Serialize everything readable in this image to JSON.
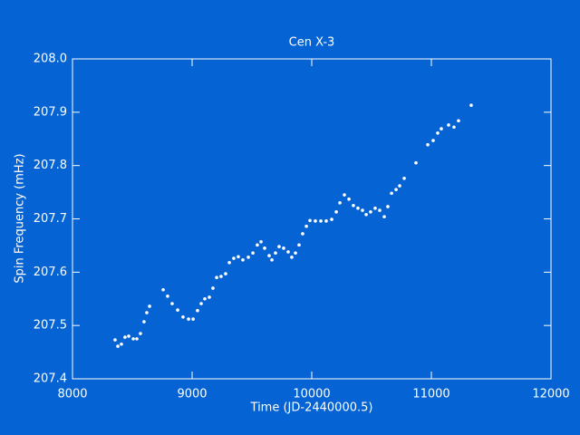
{
  "chart_data": {
    "type": "scatter",
    "title": "Cen X-3",
    "x_label": "Time (JD-2440000.5)",
    "y_label": "Spin Frequency (mHz)",
    "color": "#ffffff",
    "xlim": [
      8000,
      12000
    ],
    "xticks": [
      8000,
      9000,
      10000,
      11000,
      12000
    ],
    "ylim": [
      207.4,
      208.0
    ],
    "yticks": [
      207.4,
      207.5,
      207.6,
      207.7,
      207.8,
      207.9,
      {
        "value": 208.0,
        "label": "208.0"
      }
    ],
    "x": [
      8356,
      8379,
      8409,
      8439,
      8470,
      8508,
      8538,
      8568,
      8598,
      8621,
      8644,
      8758,
      8795,
      8833,
      8879,
      8924,
      8970,
      9008,
      9045,
      9076,
      9106,
      9144,
      9174,
      9205,
      9242,
      9280,
      9311,
      9348,
      9386,
      9424,
      9470,
      9508,
      9545,
      9576,
      9606,
      9644,
      9667,
      9697,
      9727,
      9765,
      9803,
      9833,
      9864,
      9894,
      9924,
      9955,
      9985,
      10030,
      10076,
      10121,
      10167,
      10205,
      10235,
      10273,
      10311,
      10348,
      10386,
      10424,
      10455,
      10492,
      10530,
      10568,
      10606,
      10636,
      10667,
      10705,
      10735,
      10773,
      10871,
      10970,
      11015,
      11053,
      11083,
      11144,
      11189,
      11227,
      11333
    ],
    "values": [
      207.473,
      207.461,
      207.465,
      207.478,
      207.48,
      207.475,
      207.475,
      207.485,
      207.507,
      207.524,
      207.536,
      207.567,
      207.555,
      207.541,
      207.529,
      207.516,
      207.512,
      207.512,
      207.528,
      207.541,
      207.55,
      207.553,
      207.57,
      207.59,
      207.592,
      207.597,
      207.618,
      207.626,
      207.629,
      207.623,
      207.628,
      207.636,
      207.651,
      207.657,
      207.645,
      207.631,
      207.623,
      207.636,
      207.648,
      207.645,
      207.638,
      207.628,
      207.636,
      207.651,
      207.672,
      207.686,
      207.697,
      207.696,
      207.696,
      207.696,
      207.699,
      207.713,
      207.73,
      207.745,
      207.737,
      207.725,
      207.72,
      207.716,
      207.708,
      207.713,
      207.72,
      207.716,
      207.704,
      207.723,
      207.748,
      207.755,
      207.762,
      207.776,
      207.805,
      207.839,
      207.847,
      207.861,
      207.869,
      207.876,
      207.872,
      207.884,
      207.913
    ]
  }
}
